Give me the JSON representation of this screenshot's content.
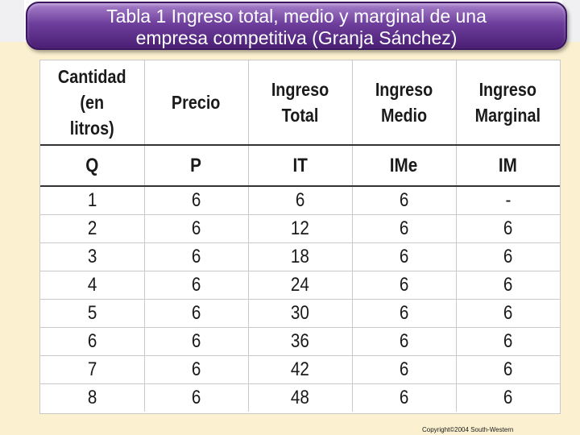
{
  "title": {
    "line1": "Tabla 1 Ingreso total, medio y marginal de una",
    "line2": "empresa competitiva (Granja Sánchez)"
  },
  "table": {
    "headers": [
      {
        "line1": "Cantidad (en",
        "line2": "litros)"
      },
      {
        "line1": "Precio",
        "line2": ""
      },
      {
        "line1": "Ingreso",
        "line2": "Total"
      },
      {
        "line1": "Ingreso",
        "line2": "Medio"
      },
      {
        "line1": "Ingreso",
        "line2": "Marginal"
      }
    ],
    "symbols": [
      "Q",
      "P",
      "IT",
      "IMe",
      "IM"
    ],
    "rows": [
      [
        "1",
        "6",
        "6",
        "6",
        "-"
      ],
      [
        "2",
        "6",
        "12",
        "6",
        "6"
      ],
      [
        "3",
        "6",
        "18",
        "6",
        "6"
      ],
      [
        "4",
        "6",
        "24",
        "6",
        "6"
      ],
      [
        "5",
        "6",
        "30",
        "6",
        "6"
      ],
      [
        "6",
        "6",
        "36",
        "6",
        "6"
      ],
      [
        "7",
        "6",
        "42",
        "6",
        "6"
      ],
      [
        "8",
        "6",
        "48",
        "6",
        "6"
      ]
    ]
  },
  "copyright": "Copyright©2004  South-Western",
  "colors": {
    "banner": "#6e3f9c",
    "background": "#fbf0cf"
  }
}
